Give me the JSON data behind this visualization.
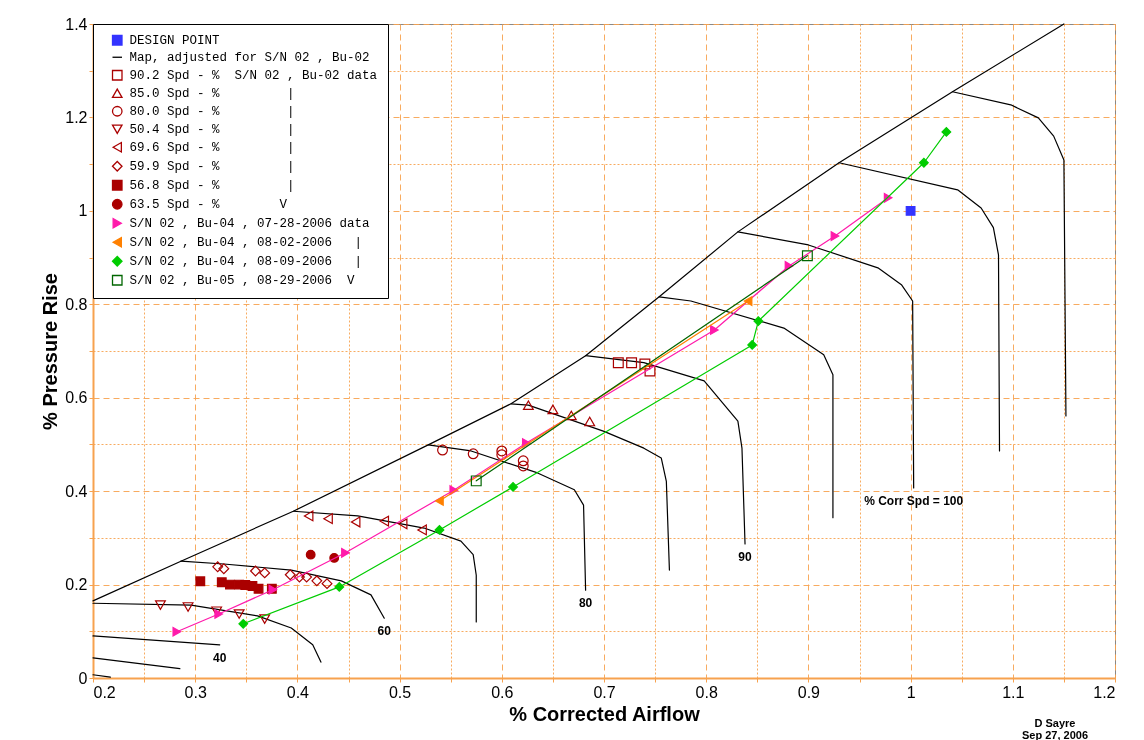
{
  "chart_data": {
    "type": "line",
    "xlabel": "% Corrected Airflow",
    "ylabel": "% Pressure Rise",
    "xlim": [
      0.2,
      1.2
    ],
    "ylim": [
      0,
      1.4
    ],
    "xticks": [
      0.2,
      {
        "value": 0.25,
        "label": null
      },
      0.3,
      {
        "value": 0.35,
        "label": null
      },
      0.4,
      {
        "value": 0.45,
        "label": null
      },
      0.5,
      {
        "value": 0.55,
        "label": null
      },
      0.6,
      {
        "value": 0.65,
        "label": null
      },
      0.7,
      {
        "value": 0.75,
        "label": null
      },
      0.8,
      {
        "value": 0.85,
        "label": null
      },
      0.9,
      {
        "value": 0.95,
        "label": null
      },
      1,
      {
        "value": 1.05,
        "label": null
      },
      1.1,
      {
        "value": 1.15,
        "label": null
      },
      1.2
    ],
    "yticks": [
      0,
      {
        "value": 0.1,
        "label": null
      },
      0.2,
      {
        "value": 0.3,
        "label": null
      },
      0.4,
      {
        "value": 0.5,
        "label": null
      },
      0.6,
      {
        "value": 0.7,
        "label": null
      },
      0.8,
      {
        "value": 0.9,
        "label": null
      },
      1,
      {
        "value": 1.1,
        "label": null
      },
      1.2,
      {
        "value": 1.3,
        "label": null
      },
      1.4
    ],
    "grid": true,
    "legend": "top left",
    "line_style": "solid",
    "series": [
      {
        "name": "DESIGN POINT",
        "type": "scatter",
        "color": "#3333ff",
        "marker": "square",
        "x": [
          1.0
        ],
        "values": [
          1.0
        ]
      },
      {
        "name": "Map, adjusted for S/N 02 , Bu-02",
        "type": "line",
        "color": "#000000",
        "marker": "none",
        "x": [
          0.2,
          0.286,
          0.396,
          0.528,
          0.609,
          0.682,
          0.754,
          0.831,
          0.93,
          1.041,
          1.15
        ],
        "values": [
          0.165,
          0.25,
          0.357,
          0.499,
          0.587,
          0.69,
          0.816,
          0.955,
          1.103,
          1.255,
          1.4
        ]
      },
      {
        "type": "line",
        "color": "#000000",
        "marker": "none",
        "x": [
          0.2,
          0.217
        ],
        "values": [
          0.007,
          0.002
        ]
      },
      {
        "type": "line",
        "color": "#000000",
        "marker": "none",
        "x": [
          0.2,
          0.285
        ],
        "values": [
          0.043,
          0.02
        ]
      },
      {
        "type": "line",
        "color": "#000000",
        "marker": "none",
        "x": [
          0.2,
          0.324
        ],
        "values": [
          0.09,
          0.071
        ]
      },
      {
        "type": "line",
        "color": "#000000",
        "marker": "none",
        "x": [
          0.2,
          0.296,
          0.361,
          0.394,
          0.415,
          0.423
        ],
        "values": [
          0.16,
          0.156,
          0.133,
          0.107,
          0.071,
          0.034
        ]
      },
      {
        "type": "line",
        "color": "#000000",
        "marker": "none",
        "x": [
          0.286,
          0.328,
          0.394,
          0.443,
          0.472,
          0.485
        ],
        "values": [
          0.25,
          0.244,
          0.231,
          0.208,
          0.178,
          0.128
        ]
      },
      {
        "type": "line",
        "color": "#000000",
        "marker": "none",
        "x": [
          0.396,
          0.459,
          0.524,
          0.56,
          0.572,
          0.575,
          0.575
        ],
        "values": [
          0.357,
          0.347,
          0.321,
          0.293,
          0.264,
          0.22,
          0.12
        ]
      },
      {
        "type": "line",
        "color": "#000000",
        "marker": "none",
        "x": [
          0.528,
          0.57,
          0.635,
          0.671,
          0.68,
          0.682
        ],
        "values": [
          0.499,
          0.486,
          0.439,
          0.403,
          0.37,
          0.188
        ]
      },
      {
        "type": "line",
        "color": "#000000",
        "marker": "none",
        "x": [
          0.609,
          0.626,
          0.7,
          0.739,
          0.756,
          0.761,
          0.764
        ],
        "values": [
          0.587,
          0.584,
          0.528,
          0.492,
          0.471,
          0.421,
          0.231
        ]
      },
      {
        "type": "line",
        "color": "#000000",
        "marker": "none",
        "x": [
          0.682,
          0.739,
          0.798,
          0.831,
          0.835,
          0.838
        ],
        "values": [
          0.69,
          0.675,
          0.636,
          0.55,
          0.492,
          0.287
        ]
      },
      {
        "type": "line",
        "color": "#000000",
        "marker": "none",
        "x": [
          0.754,
          0.785,
          0.876,
          0.915,
          0.924,
          0.924
        ],
        "values": [
          0.816,
          0.807,
          0.749,
          0.692,
          0.649,
          0.343
        ]
      },
      {
        "type": "line",
        "color": "#000000",
        "marker": "none",
        "x": [
          0.831,
          0.9,
          0.968,
          0.991,
          1.002,
          1.003
        ],
        "values": [
          0.955,
          0.927,
          0.878,
          0.842,
          0.807,
          0.407
        ]
      },
      {
        "type": "line",
        "color": "#000000",
        "marker": "none",
        "x": [
          0.93,
          1.046,
          1.069,
          1.081,
          1.086,
          1.087
        ],
        "values": [
          1.103,
          1.045,
          1.006,
          0.964,
          0.906,
          0.486
        ]
      },
      {
        "type": "line",
        "color": "#000000",
        "marker": "none",
        "x": [
          1.041,
          1.098,
          1.125,
          1.14,
          1.15,
          1.152
        ],
        "values": [
          1.255,
          1.227,
          1.199,
          1.16,
          1.109,
          0.561
        ]
      },
      {
        "name": "90.2 Spd - %  S/N 02 , Bu-02 data",
        "type": "scatter",
        "color": "#aa0000",
        "marker": "square-open",
        "x": [
          0.714,
          0.727,
          0.74,
          0.745
        ],
        "values": [
          0.675,
          0.675,
          0.672,
          0.657
        ]
      },
      {
        "name": "85.0 Spd - %         |",
        "type": "scatter",
        "color": "#aa0000",
        "marker": "triangle-open",
        "x": [
          0.626,
          0.65,
          0.668,
          0.686
        ],
        "values": [
          0.584,
          0.575,
          0.562,
          0.549
        ]
      },
      {
        "name": "80.0 Spd - %         |",
        "type": "scatter",
        "color": "#aa0000",
        "marker": "circle-open",
        "x": [
          0.542,
          0.572,
          0.6,
          0.6,
          0.621,
          0.621
        ],
        "values": [
          0.488,
          0.48,
          0.486,
          0.478,
          0.465,
          0.454
        ]
      },
      {
        "name": "50.4 Spd - %         |",
        "type": "scatter",
        "color": "#aa0000",
        "marker": "triangle-down-open",
        "x": [
          0.266,
          0.293,
          0.321,
          0.343,
          0.368
        ],
        "values": [
          0.156,
          0.152,
          0.143,
          0.137,
          0.126
        ]
      },
      {
        "name": "69.6 Spd - %         |",
        "type": "scatter",
        "color": "#aa0000",
        "marker": "triangle-left-open",
        "x": [
          0.411,
          0.43,
          0.457,
          0.485,
          0.503,
          0.522
        ],
        "values": [
          0.347,
          0.341,
          0.334,
          0.336,
          0.33,
          0.317
        ]
      },
      {
        "name": "59.9 Spd - %         |",
        "type": "scatter",
        "color": "#aa0000",
        "marker": "diamond-open",
        "x": [
          0.322,
          0.328,
          0.359,
          0.368,
          0.393,
          0.402,
          0.409,
          0.419,
          0.429
        ],
        "values": [
          0.238,
          0.234,
          0.229,
          0.225,
          0.221,
          0.216,
          0.216,
          0.208,
          0.202
        ]
      },
      {
        "name": "56.8 Spd - %         |",
        "type": "scatter",
        "color": "#aa0000",
        "marker": "square",
        "x": [
          0.305,
          0.326,
          0.334,
          0.343,
          0.349,
          0.356,
          0.362,
          0.375
        ],
        "values": [
          0.207,
          0.205,
          0.2,
          0.2,
          0.199,
          0.197,
          0.191,
          0.191
        ]
      },
      {
        "name": "63.5 Spd - %        V",
        "type": "scatter",
        "color": "#aa0000",
        "marker": "circle",
        "x": [
          0.413,
          0.436
        ],
        "values": [
          0.264,
          0.257
        ]
      },
      {
        "name": "S/N 02 , Bu-04 , 07-28-2006 data",
        "type": "line",
        "color": "#ff1aaa",
        "marker": "triangle-right",
        "x": [
          0.282,
          0.323,
          0.376,
          0.447,
          0.553,
          0.624,
          0.808,
          0.881,
          0.926,
          0.978
        ],
        "values": [
          0.099,
          0.137,
          0.189,
          0.268,
          0.402,
          0.503,
          0.745,
          0.882,
          0.946,
          1.028
        ]
      },
      {
        "name": "S/N 02 , Bu-04 , 08-02-2006   |",
        "type": "line",
        "color": "#ff8000",
        "marker": "triangle-left",
        "x": [
          0.539,
          0.841
        ],
        "values": [
          0.379,
          0.807
        ]
      },
      {
        "name": "S/N 02 , Bu-04 , 08-09-2006   |",
        "type": "line",
        "color": "#00cc00",
        "marker": "diamond",
        "x": [
          0.347,
          0.441,
          0.539,
          0.611,
          0.845,
          0.851,
          1.013,
          1.035
        ],
        "values": [
          0.116,
          0.195,
          0.317,
          0.409,
          0.713,
          0.764,
          1.103,
          1.169
        ]
      },
      {
        "name": "S/N 02 , Bu-05 , 08-29-2006  V",
        "type": "line",
        "color": "#006600",
        "marker": "square-open",
        "x": [
          0.575,
          0.899
        ],
        "values": [
          0.422,
          0.904
        ]
      }
    ],
    "annotations": [
      {
        "text": "40",
        "x": 0.324,
        "y": 0.071
      },
      {
        "text": "60",
        "x": 0.485,
        "y": 0.128
      },
      {
        "text": "80",
        "x": 0.682,
        "y": 0.188
      },
      {
        "text": "90",
        "x": 0.838,
        "y": 0.287
      },
      {
        "text": "% Corr Spd = 100",
        "x": 1.003,
        "y": 0.407
      },
      "D Sayre",
      "Sep 27, 2006"
    ]
  }
}
